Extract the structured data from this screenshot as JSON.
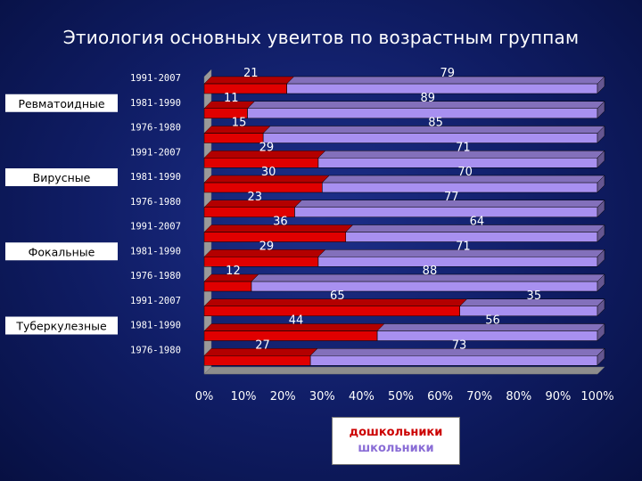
{
  "slide": {
    "title": "Этиология основных увеитов по возрастным группам"
  },
  "colors": {
    "preschool": "#e00000",
    "school": "#a890f0",
    "legend_preschool_text": "#cc0000",
    "legend_school_text": "#8a6dd6"
  },
  "chart_data": {
    "type": "bar",
    "orientation": "horizontal",
    "stacked": "100%",
    "xlim": [
      0,
      100
    ],
    "x_ticks": [
      "0%",
      "10%",
      "20%",
      "30%",
      "40%",
      "50%",
      "60%",
      "70%",
      "80%",
      "90%",
      "100%"
    ],
    "groups": [
      {
        "name": "Ревматоидные",
        "bars": [
          {
            "period": "1991-2007",
            "preschool": 21,
            "school": 79
          },
          {
            "period": "1981-1990",
            "preschool": 11,
            "school": 89
          },
          {
            "period": "1976-1980",
            "preschool": 15,
            "school": 85
          }
        ]
      },
      {
        "name": "Вирусные",
        "bars": [
          {
            "period": "1991-2007",
            "preschool": 29,
            "school": 71
          },
          {
            "period": "1981-1990",
            "preschool": 30,
            "school": 70
          },
          {
            "period": "1976-1980",
            "preschool": 23,
            "school": 77
          }
        ]
      },
      {
        "name": "Фокальные",
        "bars": [
          {
            "period": "1991-2007",
            "preschool": 36,
            "school": 64
          },
          {
            "period": "1981-1990",
            "preschool": 29,
            "school": 71
          },
          {
            "period": "1976-1980",
            "preschool": 12,
            "school": 88
          }
        ]
      },
      {
        "name": "Туберкулезные",
        "bars": [
          {
            "period": "1991-2007",
            "preschool": 65,
            "school": 35
          },
          {
            "period": "1981-1990",
            "preschool": 44,
            "school": 56
          },
          {
            "period": "1976-1980",
            "preschool": 27,
            "school": 73
          }
        ]
      }
    ],
    "series": [
      {
        "key": "preschool",
        "name": "дошкольники"
      },
      {
        "key": "school",
        "name": "школьники"
      }
    ],
    "legend": "bottom-right"
  }
}
